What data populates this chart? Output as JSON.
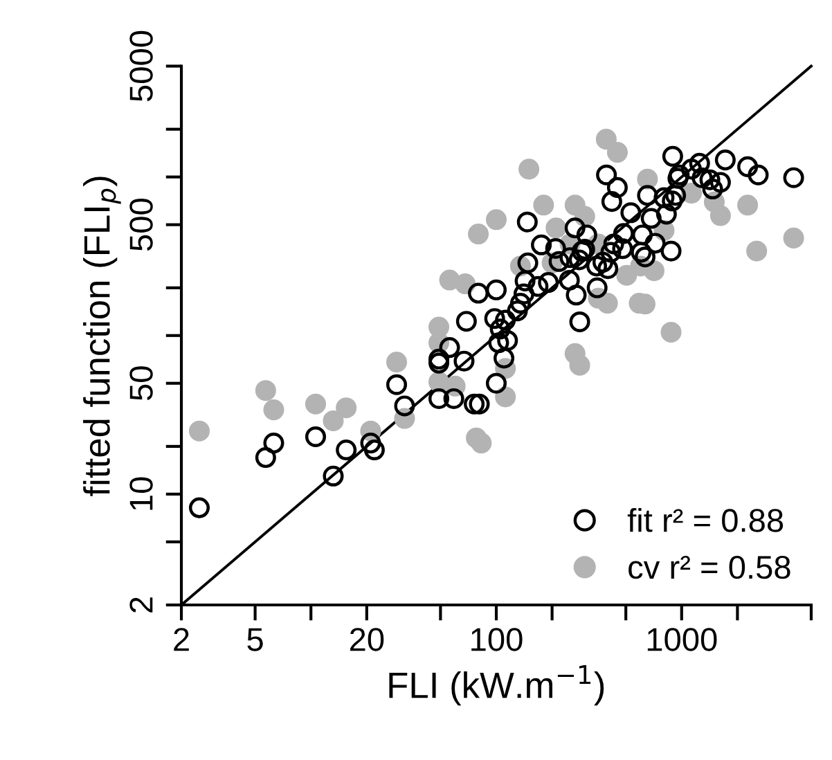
{
  "chart_data": {
    "type": "scatter",
    "xlabel": "FLI (kW.m$^{−1}$)",
    "ylabel": "fitted function (FLI$_{p}$)",
    "log": "xy",
    "xlim": [
      2,
      5000
    ],
    "ylim": [
      2,
      5000
    ],
    "xticks": [
      2,
      5,
      {
        "value": 10,
        "label": null
      },
      20,
      {
        "value": 50,
        "label": null
      },
      100,
      {
        "value": 200,
        "label": null
      },
      {
        "value": 500,
        "label": null
      },
      1000,
      {
        "value": 2000,
        "label": null
      },
      {
        "value": 5000,
        "label": null
      }
    ],
    "yticks": [
      2,
      {
        "value": 5,
        "label": null
      },
      10,
      {
        "value": 20,
        "label": null
      },
      50,
      {
        "value": 100,
        "label": null
      },
      {
        "value": 200,
        "label": null
      },
      500,
      {
        "value": 1000,
        "label": null
      },
      {
        "value": 2000,
        "label": null
      },
      5000
    ],
    "grid": false,
    "legend": "bottom right",
    "series": [
      {
        "name": "fit r² = 0.88",
        "color": "#000000",
        "marker": "circle",
        "x": [
          2.5,
          5.7,
          6.3,
          10.6,
          13.2,
          15.5,
          21,
          22,
          29,
          32,
          49,
          49,
          56,
          49,
          59,
          67,
          69,
          76,
          81,
          80,
          100,
          100,
          98,
          112,
          103,
          115,
          110,
          105,
          130,
          135,
          141,
          143,
          148,
          147,
          168,
          175,
          191,
          209,
          218,
          248,
          266,
          270,
          282,
          308,
          250,
          290,
          300,
          280,
          348,
          350,
          376,
          393,
          450,
          420,
          400,
          430,
          486,
          480,
          532,
          614,
          654,
          685,
          605,
          635,
          720,
          804,
          828,
          877,
          890,
          895,
          928,
          955,
          970,
          1130,
          1250,
          1290,
          1420,
          1470,
          1620,
          1720,
          2270,
          2590,
          4020,
          415
        ],
        "values": [
          8.2,
          17,
          21,
          23,
          13,
          19,
          21,
          19,
          49,
          36,
          71,
          67,
          84,
          40,
          40,
          69,
          123,
          37,
          37,
          185,
          194,
          50,
          128,
          125,
          90,
          93,
          72,
          110,
          143,
          160,
          183,
          221,
          287,
          520,
          204,
          373,
          216,
          354,
          293,
          223,
          477,
          180,
          122,
          431,
          310,
          340,
          350,
          300,
          274,
          200,
          290,
          1030,
          858,
          700,
          264,
          378,
          440,
          353,
          595,
          431,
          765,
          548,
          335,
          313,
          382,
          740,
          583,
          341,
          706,
          1350,
          765,
          980,
          1030,
          1120,
          1220,
          987,
          960,
          840,
          925,
          1280,
          1160,
          1030,
          990,
          335
        ]
      },
      {
        "name": "cv r² = 0.58",
        "color": "#b3b3b3",
        "marker": "circle",
        "x": [
          2.5,
          5.7,
          6.3,
          10.6,
          13.2,
          15.5,
          21,
          29,
          32,
          49,
          49,
          56,
          68,
          80,
          100,
          78,
          83,
          112,
          112,
          49,
          60,
          150,
          180,
          210,
          266,
          300,
          266,
          282,
          392,
          450,
          355,
          398,
          590,
          635,
          877,
          654,
          710,
          804,
          1130,
          1620,
          2270,
          2540,
          4020,
          1500,
          600,
          505,
          200,
          135,
          355,
          250
        ],
        "values": [
          25,
          45,
          34,
          37,
          29,
          35,
          25,
          68,
          30,
          113,
          90,
          224,
          212,
          437,
          538,
          22.6,
          21,
          41,
          62,
          51,
          48,
          1120,
          665,
          477,
          665,
          564,
          77,
          65,
          1730,
          1430,
          172,
          160,
          160,
          158,
          105,
          970,
          256,
          460,
          790,
          570,
          665,
          341,
          412,
          695,
          274,
          240,
          287,
          274,
          378,
          378
        ]
      },
      {
        "type": "line",
        "color": "#000000",
        "marker": "none",
        "x": [
          2,
          5000
        ],
        "values": [
          2,
          5000
        ]
      }
    ]
  }
}
